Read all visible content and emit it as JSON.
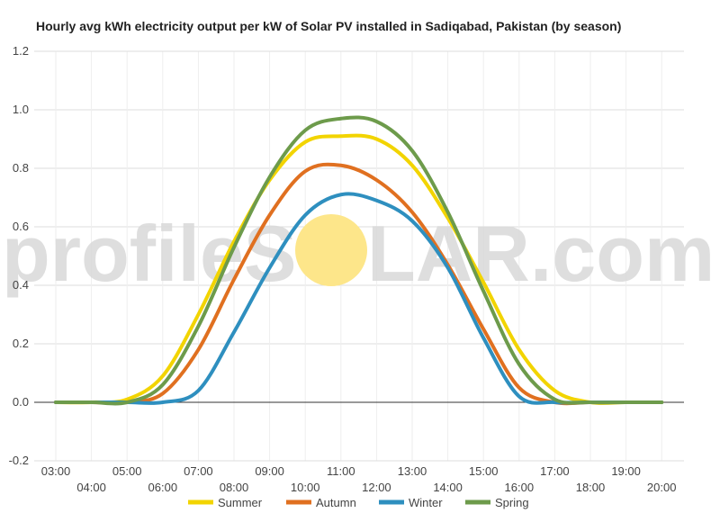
{
  "chart_data": {
    "type": "line",
    "title": "Hourly avg kWh electricity output per kW of Solar PV installed in Sadiqabad, Pakistan (by season)",
    "watermark": {
      "left": "profileS",
      "right": "LAR.com",
      "sun_color": "#fde68a"
    },
    "x": [
      "03:00",
      "04:00",
      "05:00",
      "06:00",
      "07:00",
      "08:00",
      "09:00",
      "10:00",
      "11:00",
      "12:00",
      "13:00",
      "14:00",
      "15:00",
      "16:00",
      "17:00",
      "18:00",
      "19:00",
      "20:00"
    ],
    "ylim": [
      -0.2,
      1.2
    ],
    "yticks": [
      "-0.2",
      "0.0",
      "0.2",
      "0.4",
      "0.6",
      "0.8",
      "1.0",
      "1.2"
    ],
    "grid": true,
    "legend": "bottom",
    "series": [
      {
        "name": "Summer",
        "color": "#f2d400",
        "values": [
          0.0,
          0.0,
          0.01,
          0.09,
          0.3,
          0.55,
          0.76,
          0.89,
          0.91,
          0.9,
          0.81,
          0.63,
          0.41,
          0.18,
          0.04,
          0.0,
          0.0,
          0.0
        ]
      },
      {
        "name": "Autumn",
        "color": "#e07020",
        "values": [
          0.0,
          0.0,
          0.0,
          0.03,
          0.18,
          0.42,
          0.64,
          0.79,
          0.81,
          0.76,
          0.65,
          0.47,
          0.25,
          0.05,
          0.0,
          0.0,
          0.0,
          0.0
        ]
      },
      {
        "name": "Winter",
        "color": "#2e8fbf",
        "values": [
          0.0,
          0.0,
          0.0,
          0.0,
          0.04,
          0.24,
          0.46,
          0.64,
          0.71,
          0.69,
          0.62,
          0.46,
          0.22,
          0.02,
          0.0,
          0.0,
          0.0,
          0.0
        ]
      },
      {
        "name": "Spring",
        "color": "#6d9b4b",
        "values": [
          0.0,
          0.0,
          0.0,
          0.06,
          0.26,
          0.53,
          0.77,
          0.93,
          0.97,
          0.96,
          0.86,
          0.65,
          0.38,
          0.13,
          0.01,
          0.0,
          0.0,
          0.0
        ]
      }
    ]
  }
}
